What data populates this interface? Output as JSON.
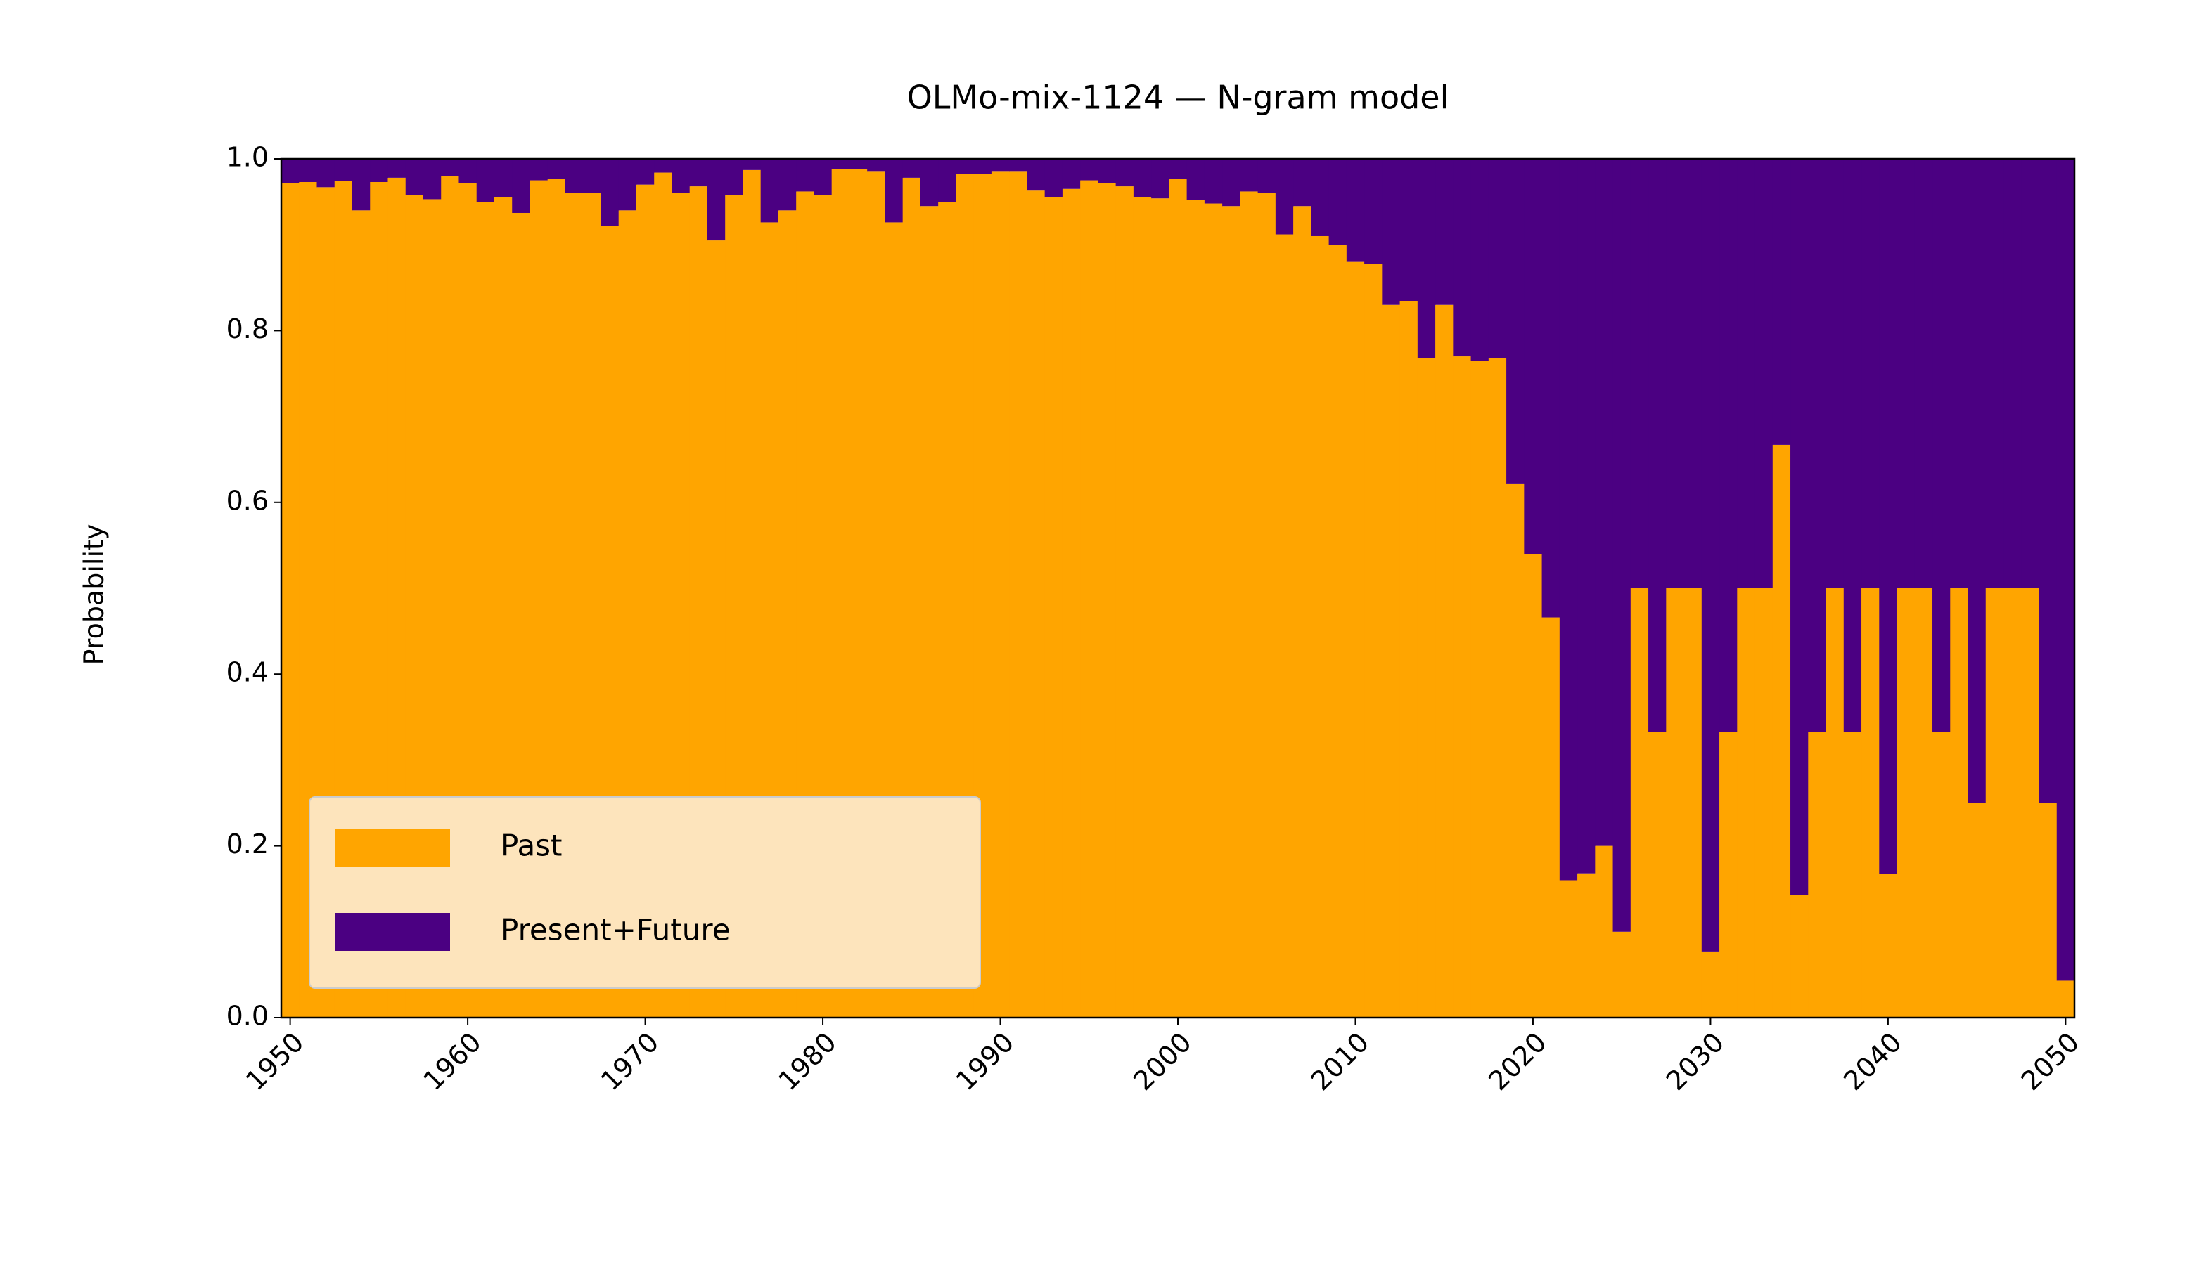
{
  "chart_data": {
    "type": "stacked_bar",
    "title": "OLMo-mix-1124 — N-gram model",
    "y_label": "Probability",
    "x": [
      1950,
      1951,
      1952,
      1953,
      1954,
      1955,
      1956,
      1957,
      1958,
      1959,
      1960,
      1961,
      1962,
      1963,
      1964,
      1965,
      1966,
      1967,
      1968,
      1969,
      1970,
      1971,
      1972,
      1973,
      1974,
      1975,
      1976,
      1977,
      1978,
      1979,
      1980,
      1981,
      1982,
      1983,
      1984,
      1985,
      1986,
      1987,
      1988,
      1989,
      1990,
      1991,
      1992,
      1993,
      1994,
      1995,
      1996,
      1997,
      1998,
      1999,
      2000,
      2001,
      2002,
      2003,
      2004,
      2005,
      2006,
      2007,
      2008,
      2009,
      2010,
      2011,
      2012,
      2013,
      2014,
      2015,
      2016,
      2017,
      2018,
      2019,
      2020,
      2021,
      2022,
      2023,
      2024,
      2025,
      2026,
      2027,
      2028,
      2029,
      2030,
      2031,
      2032,
      2033,
      2034,
      2035,
      2036,
      2037,
      2038,
      2039,
      2040,
      2041,
      2042,
      2043,
      2044,
      2045,
      2046,
      2047,
      2048,
      2049,
      2050
    ],
    "series": [
      {
        "name": "Past",
        "color": "#ffa500",
        "values": [
          0.972,
          0.973,
          0.967,
          0.974,
          0.94,
          0.973,
          0.978,
          0.958,
          0.953,
          0.98,
          0.972,
          0.95,
          0.955,
          0.937,
          0.975,
          0.977,
          0.96,
          0.96,
          0.922,
          0.94,
          0.97,
          0.984,
          0.96,
          0.968,
          0.905,
          0.958,
          0.987,
          0.926,
          0.94,
          0.962,
          0.958,
          0.988,
          0.988,
          0.985,
          0.926,
          0.978,
          0.945,
          0.95,
          0.982,
          0.982,
          0.985,
          0.985,
          0.963,
          0.955,
          0.965,
          0.975,
          0.972,
          0.968,
          0.955,
          0.954,
          0.977,
          0.952,
          0.948,
          0.945,
          0.962,
          0.96,
          0.912,
          0.945,
          0.91,
          0.9,
          0.88,
          0.878,
          0.83,
          0.834,
          0.768,
          0.83,
          0.77,
          0.765,
          0.768,
          0.622,
          0.54,
          0.466,
          0.16,
          0.168,
          0.2,
          0.1,
          0.5,
          0.333,
          0.5,
          0.5,
          0.077,
          0.333,
          0.5,
          0.5,
          0.667,
          0.143,
          0.333,
          0.5,
          0.333,
          0.5,
          0.167,
          0.5,
          0.5,
          0.333,
          0.5,
          0.25,
          0.5,
          0.5,
          0.5,
          0.25,
          0.043
        ]
      },
      {
        "name": "Present+Future",
        "color": "#4b0082",
        "values": [
          0.028,
          0.027,
          0.033,
          0.026,
          0.06,
          0.027,
          0.022,
          0.042,
          0.047,
          0.02,
          0.028,
          0.05,
          0.045,
          0.063,
          0.025,
          0.023,
          0.04,
          0.04,
          0.078,
          0.06,
          0.03,
          0.016,
          0.04,
          0.032,
          0.095,
          0.042,
          0.013,
          0.074,
          0.06,
          0.038,
          0.042,
          0.012,
          0.012,
          0.015,
          0.074,
          0.022,
          0.055,
          0.05,
          0.018,
          0.018,
          0.015,
          0.015,
          0.037,
          0.045,
          0.035,
          0.025,
          0.028,
          0.032,
          0.045,
          0.046,
          0.023,
          0.048,
          0.052,
          0.055,
          0.038,
          0.04,
          0.088,
          0.055,
          0.09,
          0.1,
          0.12,
          0.122,
          0.17,
          0.166,
          0.232,
          0.17,
          0.23,
          0.235,
          0.232,
          0.378,
          0.46,
          0.534,
          0.84,
          0.832,
          0.8,
          0.9,
          0.5,
          0.667,
          0.5,
          0.5,
          0.923,
          0.667,
          0.5,
          0.5,
          0.333,
          0.857,
          0.667,
          0.5,
          0.667,
          0.5,
          0.833,
          0.5,
          0.5,
          0.667,
          0.5,
          0.75,
          0.5,
          0.5,
          0.5,
          0.75,
          0.957
        ]
      }
    ],
    "xlim": [
      1949.5,
      2050.5
    ],
    "xticks": [
      1950,
      1960,
      1970,
      1980,
      1990,
      2000,
      2010,
      2020,
      2030,
      2040,
      2050
    ],
    "ylim": [
      0,
      1
    ],
    "yticks": [
      {
        "value": 0,
        "label": "0.0"
      },
      {
        "value": 0.2,
        "label": "0.2"
      },
      {
        "value": 0.4,
        "label": "0.4"
      },
      {
        "value": 0.6,
        "label": "0.6"
      },
      {
        "value": 0.8,
        "label": "0.8"
      },
      {
        "value": 1,
        "label": "1.0"
      }
    ],
    "legend": "lower left"
  }
}
